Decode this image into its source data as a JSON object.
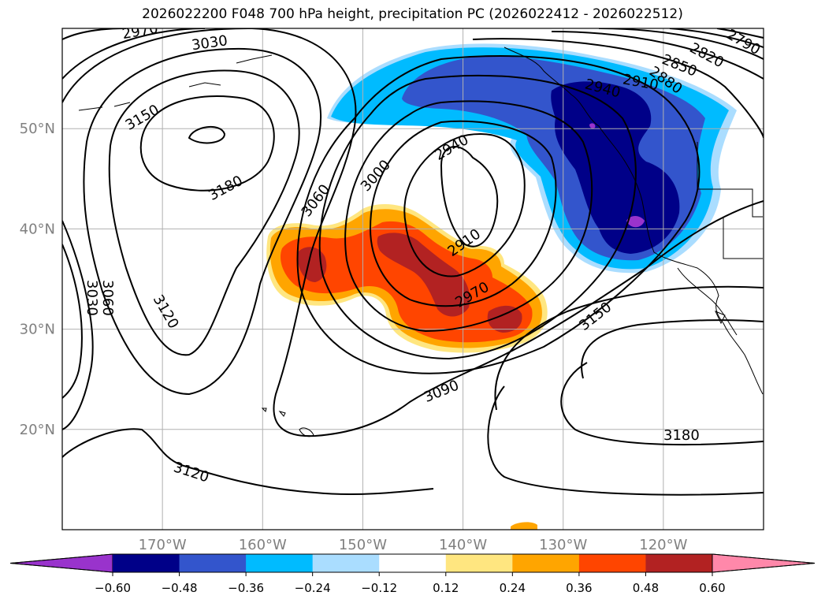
{
  "title": "2026022200 F048 700 hPa height, precipitation PC (2026022412 - 2026022512)",
  "map": {
    "lat_labels": [
      "50°N",
      "40°N",
      "30°N",
      "20°N"
    ],
    "lon_labels": [
      "170°W",
      "160°W",
      "150°W",
      "140°W",
      "130°W",
      "120°W"
    ],
    "lat_values": [
      50,
      40,
      30,
      20
    ],
    "lon_values": [
      -170,
      -160,
      -150,
      -140,
      -130,
      -120
    ],
    "extent": {
      "lon": [
        -180,
        -110
      ],
      "lat": [
        10,
        60
      ]
    },
    "gridlines": true
  },
  "contour_labels": [
    {
      "text": "2970"
    },
    {
      "text": "3030"
    },
    {
      "text": "3150"
    },
    {
      "text": "3180"
    },
    {
      "text": "3060"
    },
    {
      "text": "3000"
    },
    {
      "text": "2940"
    },
    {
      "text": "2910"
    },
    {
      "text": "2970"
    },
    {
      "text": "3150"
    },
    {
      "text": "3090"
    },
    {
      "text": "3120"
    },
    {
      "text": "3120"
    },
    {
      "text": "3180"
    },
    {
      "text": "3060"
    },
    {
      "text": "3030"
    },
    {
      "text": "2820"
    },
    {
      "text": "2790"
    },
    {
      "text": "2850"
    },
    {
      "text": "2880"
    },
    {
      "text": "2910"
    },
    {
      "text": "2940"
    }
  ],
  "colorbar": {
    "tick_labels": [
      "−0.60",
      "−0.48",
      "−0.36",
      "−0.24",
      "−0.12",
      "0.12",
      "0.24",
      "0.36",
      "0.48",
      "0.60"
    ],
    "colors": [
      "#9933cc",
      "#000088",
      "#3355cc",
      "#00bbff",
      "#aaddff",
      "#ffffff",
      "#ffe680",
      "#ffa500",
      "#ff4500",
      "#b22222",
      "#ff88aa"
    ]
  },
  "colors": {
    "neg_1": "#aaddff",
    "neg_2": "#00bbff",
    "neg_3": "#3355cc",
    "neg_4": "#000088",
    "neg_5": "#9933cc",
    "pos_1": "#ffe680",
    "pos_2": "#ffa500",
    "pos_3": "#ff4500",
    "pos_4": "#b22222"
  }
}
